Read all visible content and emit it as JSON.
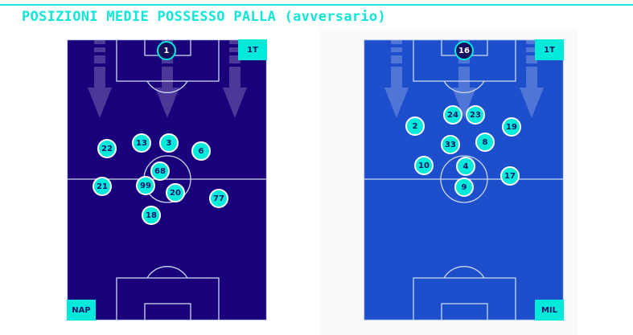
{
  "title": "POSIZIONI MEDIE POSSESSO PALLA (avversario)",
  "colors": {
    "accent": "#00eadc",
    "home_pitch": "#1b007c",
    "away_pitch": "#1d4fcc"
  },
  "home": {
    "team": "NAP",
    "period": "1T",
    "players": [
      {
        "number": "1",
        "gk": true
      },
      {
        "number": "22"
      },
      {
        "number": "13"
      },
      {
        "number": "3"
      },
      {
        "number": "6"
      },
      {
        "number": "68"
      },
      {
        "number": "21"
      },
      {
        "number": "99"
      },
      {
        "number": "20"
      },
      {
        "number": "77"
      },
      {
        "number": "18"
      }
    ]
  },
  "away": {
    "team": "MIL",
    "period": "1T",
    "players": [
      {
        "number": "16",
        "gk": true
      },
      {
        "number": "24"
      },
      {
        "number": "23"
      },
      {
        "number": "2"
      },
      {
        "number": "19"
      },
      {
        "number": "33"
      },
      {
        "number": "8"
      },
      {
        "number": "10"
      },
      {
        "number": "4"
      },
      {
        "number": "17"
      },
      {
        "number": "9"
      }
    ]
  }
}
